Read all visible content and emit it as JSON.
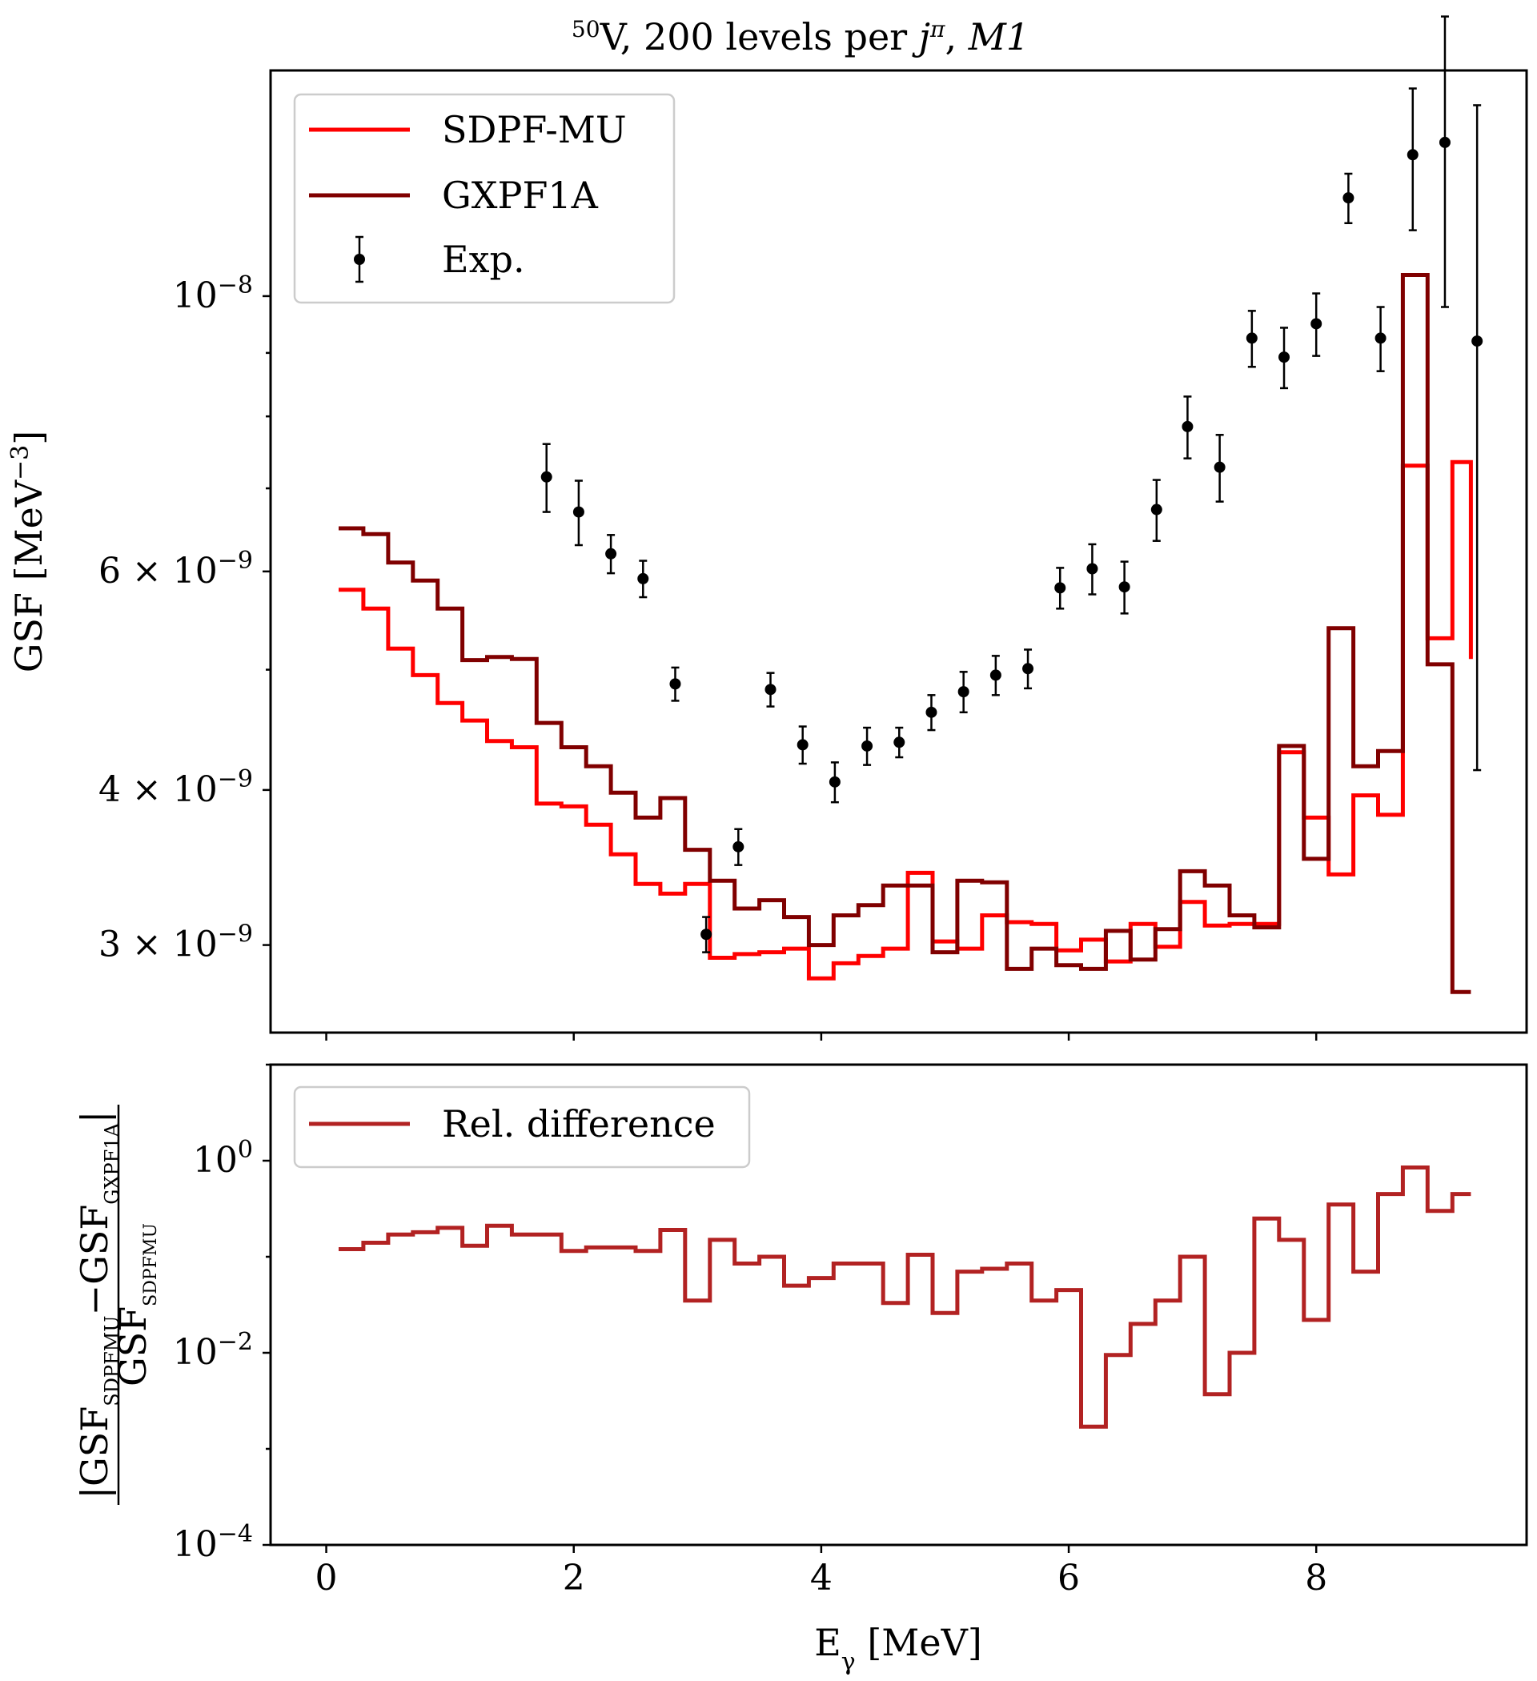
{
  "chart_data": [
    {
      "type": "line",
      "title": "50V, 200 levels per jπ, M1",
      "title_parts": {
        "mass": "50",
        "rest": "V, 200 levels per ",
        "j": "j",
        "pi": "π",
        "sep": ", ",
        "mult": "M1"
      },
      "ylabel": "GSF [MeV−3]",
      "ylabel_parts": {
        "main": "GSF [MeV",
        "sup": "−3",
        "close": "]"
      },
      "xlabel": "",
      "x_scale": "linear",
      "y_scale": "log",
      "xlim": [
        -0.45,
        9.7
      ],
      "ylim": [
        2.55e-09,
        1.52e-08
      ],
      "grid": false,
      "legend_position": "top-left",
      "x_ticks": [
        0,
        2,
        4,
        6,
        8
      ],
      "y_ticks": [
        {
          "value": 3e-09,
          "mant": "3 × 10",
          "exp": "−9"
        },
        {
          "value": 4e-09,
          "mant": "4 × 10",
          "exp": "−9"
        },
        {
          "value": 6e-09,
          "mant": "6 × 10",
          "exp": "−9"
        },
        {
          "value": 1e-08,
          "mant": "10",
          "exp": "−8"
        }
      ],
      "series": [
        {
          "name": "SDPF-MU",
          "kind": "step",
          "color": "#ff0000",
          "bin_edges": [
            0.1,
            0.3,
            0.5,
            0.7,
            0.9,
            1.1,
            1.3,
            1.5,
            1.7,
            1.9,
            2.1,
            2.3,
            2.5,
            2.7,
            2.9,
            3.1,
            3.3,
            3.5,
            3.7,
            3.9,
            4.1,
            4.3,
            4.5,
            4.7,
            4.9,
            5.1,
            5.3,
            5.5,
            5.7,
            5.9,
            6.1,
            6.3,
            6.5,
            6.7,
            6.9,
            7.1,
            7.3,
            7.5,
            7.7,
            7.9,
            8.1,
            8.3,
            8.5,
            8.7,
            8.9,
            9.1,
            9.25
          ],
          "values": [
            5.8e-09,
            5.6e-09,
            5.2e-09,
            4.95e-09,
            4.7e-09,
            4.55e-09,
            4.38e-09,
            4.33e-09,
            3.9e-09,
            3.88e-09,
            3.75e-09,
            3.55e-09,
            3.36e-09,
            3.3e-09,
            3.36e-09,
            2.93e-09,
            2.95e-09,
            2.96e-09,
            2.98e-09,
            2.82e-09,
            2.9e-09,
            2.94e-09,
            2.98e-09,
            3.43e-09,
            3.02e-09,
            2.98e-09,
            3.17e-09,
            3.13e-09,
            3.12e-09,
            2.97e-09,
            3.03e-09,
            2.91e-09,
            3.12e-09,
            2.99e-09,
            3.25e-09,
            3.11e-09,
            3.12e-09,
            3.12e-09,
            4.29e-09,
            3.8e-09,
            3.42e-09,
            3.96e-09,
            3.82e-09,
            7.3e-09,
            5.3e-09,
            7.35e-09,
            5.1e-09
          ]
        },
        {
          "name": "GXPF1A",
          "kind": "step",
          "color": "#800000",
          "bin_edges": [
            0.1,
            0.3,
            0.5,
            0.7,
            0.9,
            1.1,
            1.3,
            1.5,
            1.7,
            1.9,
            2.1,
            2.3,
            2.5,
            2.7,
            2.9,
            3.1,
            3.3,
            3.5,
            3.7,
            3.9,
            4.1,
            4.3,
            4.5,
            4.7,
            4.9,
            5.1,
            5.3,
            5.5,
            5.7,
            5.9,
            6.1,
            6.3,
            6.5,
            6.7,
            6.9,
            7.1,
            7.3,
            7.5,
            7.7,
            7.9,
            8.1,
            8.3,
            8.5,
            8.7,
            8.9,
            9.1,
            9.25
          ],
          "values": [
            6.5e-09,
            6.43e-09,
            6.1e-09,
            5.9e-09,
            5.6e-09,
            5.09e-09,
            5.12e-09,
            5.1e-09,
            4.53e-09,
            4.33e-09,
            4.18e-09,
            3.98e-09,
            3.8e-09,
            3.94e-09,
            3.58e-09,
            3.38e-09,
            3.21e-09,
            3.26e-09,
            3.16e-09,
            3e-09,
            3.17e-09,
            3.23e-09,
            3.35e-09,
            3.35e-09,
            2.96e-09,
            3.38e-09,
            3.37e-09,
            2.87e-09,
            2.98e-09,
            2.89e-09,
            2.87e-09,
            3.08e-09,
            2.92e-09,
            3.09e-09,
            3.44e-09,
            3.35e-09,
            3.17e-09,
            3.1e-09,
            4.34e-09,
            3.52e-09,
            5.4e-09,
            4.18e-09,
            4.3e-09,
            1.04e-08,
            5.05e-09,
            2.75e-09,
            2.75e-09
          ]
        },
        {
          "name": "Exp.",
          "kind": "errorbar",
          "color": "#000000",
          "x": [
            1.78,
            2.04,
            2.3,
            2.56,
            2.82,
            3.07,
            3.33,
            3.59,
            3.85,
            4.11,
            4.37,
            4.63,
            4.89,
            5.15,
            5.41,
            5.67,
            5.93,
            6.19,
            6.45,
            6.71,
            6.96,
            7.22,
            7.48,
            7.74,
            8.0,
            8.26,
            8.52,
            8.78,
            9.04,
            9.3
          ],
          "y": [
            7.15e-09,
            6.7e-09,
            6.2e-09,
            5.92e-09,
            4.87e-09,
            3.06e-09,
            3.6e-09,
            4.82e-09,
            4.35e-09,
            4.06e-09,
            4.34e-09,
            4.37e-09,
            4.62e-09,
            4.8e-09,
            4.95e-09,
            5.01e-09,
            5.82e-09,
            6.03e-09,
            5.83e-09,
            6.73e-09,
            7.85e-09,
            7.28e-09,
            9.25e-09,
            8.93e-09,
            9.5e-09,
            1.2e-08,
            9.25e-09,
            1.3e-08,
            1.33e-08,
            9.2e-09
          ],
          "yerr_low": [
            4.5e-10,
            4e-10,
            2.2e-10,
            2e-10,
            1.5e-10,
            1e-10,
            1.2e-10,
            1.5e-10,
            1.5e-10,
            1.5e-10,
            1.5e-10,
            1.2e-10,
            1.5e-10,
            1.8e-10,
            1.8e-10,
            1.8e-10,
            2.2e-10,
            2.8e-10,
            2.8e-10,
            3.8e-10,
            4.5e-10,
            4.5e-10,
            4.8e-10,
            5e-10,
            5.5e-10,
            5.5e-10,
            5.5e-10,
            1.7e-09,
            3.5e-09,
            5.05e-09
          ],
          "yerr_high": [
            4.5e-10,
            4e-10,
            2.2e-10,
            2e-10,
            1.5e-10,
            1e-10,
            1.2e-10,
            1.5e-10,
            1.5e-10,
            1.5e-10,
            1.5e-10,
            1.2e-10,
            1.5e-10,
            1.8e-10,
            1.8e-10,
            1.8e-10,
            2.2e-10,
            2.8e-10,
            2.8e-10,
            3.8e-10,
            4.5e-10,
            4.5e-10,
            4.8e-10,
            5e-10,
            5.5e-10,
            5.5e-10,
            5.5e-10,
            1.7e-09,
            3.5e-09,
            5.05e-09
          ]
        }
      ]
    },
    {
      "type": "line",
      "title": "",
      "ylabel": "|GSFSDPFMU − GSFGXPF1A| / GSFSDPFMU",
      "ylabel_parts": {
        "gsf": "GSF",
        "sub_sdpfmu": "SDPFMU",
        "sub_gxpf1a": "GXPF1A",
        "minus": "−"
      },
      "xlabel": "Eγ [MeV]",
      "xlabel_parts": {
        "e": "E",
        "sub": "γ",
        "rest": " [MeV]"
      },
      "x_scale": "linear",
      "y_scale": "log",
      "xlim": [
        -0.45,
        9.7
      ],
      "ylim": [
        0.0001,
        10
      ],
      "grid": false,
      "legend_position": "top-left",
      "x_ticks": [
        {
          "value": 0,
          "label": "0"
        },
        {
          "value": 2,
          "label": "2"
        },
        {
          "value": 4,
          "label": "4"
        },
        {
          "value": 6,
          "label": "6"
        },
        {
          "value": 8,
          "label": "8"
        }
      ],
      "y_ticks": [
        {
          "value": 1,
          "base": "10",
          "exp": "0"
        },
        {
          "value": 0.01,
          "base": "10",
          "exp": "−2"
        },
        {
          "value": 0.0001,
          "base": "10",
          "exp": "−4"
        }
      ],
      "series": [
        {
          "name": "Rel. difference",
          "kind": "step",
          "color": "#b22222",
          "bin_edges": [
            0.1,
            0.3,
            0.5,
            0.7,
            0.9,
            1.1,
            1.3,
            1.5,
            1.7,
            1.9,
            2.1,
            2.3,
            2.5,
            2.7,
            2.9,
            3.1,
            3.3,
            3.5,
            3.7,
            3.9,
            4.1,
            4.3,
            4.5,
            4.7,
            4.9,
            5.1,
            5.3,
            5.5,
            5.7,
            5.9,
            6.1,
            6.3,
            6.5,
            6.7,
            6.9,
            7.1,
            7.3,
            7.5,
            7.7,
            7.9,
            8.1,
            8.3,
            8.5,
            8.7,
            8.9,
            9.1,
            9.25
          ],
          "values": [
            0.12,
            0.14,
            0.17,
            0.18,
            0.2,
            0.13,
            0.21,
            0.17,
            0.17,
            0.115,
            0.125,
            0.125,
            0.115,
            0.19,
            0.035,
            0.15,
            0.085,
            0.1,
            0.05,
            0.06,
            0.085,
            0.085,
            0.033,
            0.105,
            0.026,
            0.07,
            0.075,
            0.085,
            0.035,
            0.045,
            0.0017,
            0.0095,
            0.02,
            0.035,
            0.1,
            0.0037,
            0.01,
            0.25,
            0.15,
            0.022,
            0.35,
            0.07,
            0.45,
            0.85,
            0.3,
            0.45,
            0.45
          ]
        }
      ]
    }
  ]
}
